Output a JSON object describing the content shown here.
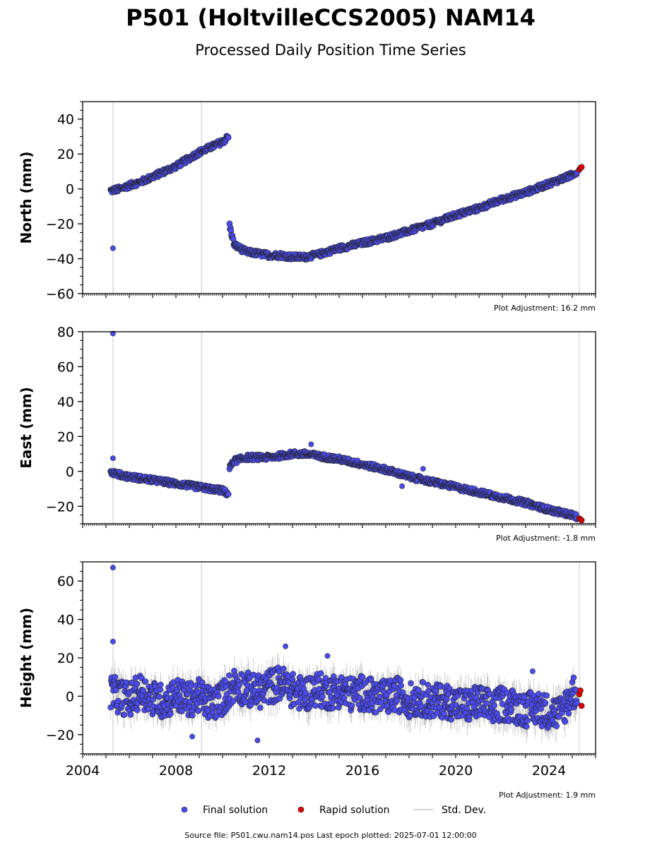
{
  "title": "P501 (HoltvilleCCS2005) NAM14",
  "subtitle": "Processed Daily Position Time Series",
  "footer": "Source file: P501.cwu.nam14.pos  Last epoch plotted: 2025-07-01 12:00:00",
  "legend": {
    "final": "Final solution",
    "rapid": "Rapid solution",
    "std": "Std. Dev."
  },
  "colors": {
    "final": "#4b4bf0",
    "rapid": "#e00000",
    "std": "#bbbbbb",
    "outline": "#222222"
  },
  "chart_data": [
    {
      "type": "scatter",
      "ylabel": "North (mm)",
      "adjustment": "Plot Adjustment: 16.2 mm",
      "xlim": [
        2004,
        2026
      ],
      "ylim": [
        -60,
        50
      ],
      "yticks": [
        -60,
        -40,
        -20,
        0,
        20,
        40
      ],
      "vlines": [
        2005.3,
        2009.1,
        2025.3
      ],
      "series": [
        {
          "role": "final",
          "x": [
            2005.2,
            2005.6,
            2006.0,
            2006.5,
            2007.0,
            2007.5,
            2008.0,
            2008.5,
            2009.0,
            2009.5,
            2010.0,
            2010.25,
            2010.3,
            2010.5,
            2011.0,
            2011.5,
            2012.0,
            2012.5,
            2013.0,
            2013.5,
            2014.0,
            2014.5,
            2015.0,
            2016.0,
            2017.0,
            2018.0,
            2019.0,
            2020.0,
            2021.0,
            2022.0,
            2023.0,
            2024.0,
            2025.0,
            2025.2
          ],
          "y": [
            -1,
            0,
            2,
            4,
            7,
            10,
            13,
            17,
            21,
            24,
            27,
            30,
            -21,
            -32,
            -36,
            -37,
            -38,
            -38,
            -39,
            -39,
            -38,
            -36,
            -34,
            -31,
            -28,
            -24,
            -20,
            -15,
            -11,
            -6,
            -2,
            3,
            8,
            10
          ]
        },
        {
          "role": "final-outlier",
          "x": [
            2005.3
          ],
          "y": [
            -34
          ]
        },
        {
          "role": "rapid",
          "x": [
            2025.3,
            2025.35,
            2025.4
          ],
          "y": [
            11,
            12,
            12.5
          ]
        }
      ]
    },
    {
      "type": "scatter",
      "ylabel": "East (mm)",
      "adjustment": "Plot Adjustment: -1.8 mm",
      "xlim": [
        2004,
        2026
      ],
      "ylim": [
        -30,
        80
      ],
      "yticks": [
        -20,
        0,
        20,
        40,
        60,
        80
      ],
      "vlines": [
        2005.3,
        2009.1,
        2025.3
      ],
      "series": [
        {
          "role": "final",
          "x": [
            2005.2,
            2005.6,
            2006.0,
            2006.5,
            2007.0,
            2007.5,
            2008.0,
            2008.5,
            2009.0,
            2009.5,
            2010.0,
            2010.25,
            2010.3,
            2010.5,
            2011.0,
            2011.5,
            2012.0,
            2012.5,
            2013.0,
            2013.5,
            2014.0,
            2014.5,
            2015.0,
            2016.0,
            2017.0,
            2018.0,
            2019.0,
            2020.0,
            2021.0,
            2022.0,
            2023.0,
            2024.0,
            2025.0,
            2025.2
          ],
          "y": [
            0,
            -2,
            -3,
            -4,
            -5,
            -6,
            -7,
            -8,
            -9,
            -10,
            -11,
            -13,
            2,
            6,
            8,
            8,
            8,
            9,
            10,
            10,
            9,
            8,
            7,
            4,
            1,
            -3,
            -6,
            -9,
            -12,
            -15,
            -18,
            -22,
            -25,
            -26
          ]
        },
        {
          "role": "final-outlier",
          "x": [
            2005.3,
            2005.3,
            2013.8,
            2018.6,
            2017.7
          ],
          "y": [
            79,
            7.5,
            15.5,
            1.5,
            -8.5
          ]
        },
        {
          "role": "rapid",
          "x": [
            2025.3,
            2025.35,
            2025.4
          ],
          "y": [
            -27,
            -27.5,
            -28
          ]
        }
      ]
    },
    {
      "type": "scatter",
      "ylabel": "Height (mm)",
      "adjustment": "Plot Adjustment: 1.9 mm",
      "xlim": [
        2004,
        2026
      ],
      "ylim": [
        -30,
        70
      ],
      "yticks": [
        -20,
        0,
        20,
        40,
        60
      ],
      "xticks": [
        2004,
        2008,
        2012,
        2016,
        2020,
        2024
      ],
      "vlines": [
        2005.3,
        2009.1,
        2025.3
      ],
      "series": [
        {
          "role": "final",
          "x": [
            2005.2,
            2005.6,
            2006.0,
            2006.5,
            2007.0,
            2007.5,
            2008.0,
            2008.5,
            2009.0,
            2009.5,
            2010.0,
            2010.5,
            2011.0,
            2011.5,
            2012.0,
            2012.5,
            2013.0,
            2013.5,
            2014.0,
            2014.5,
            2015.0,
            2015.5,
            2016.0,
            2016.5,
            2017.0,
            2017.5,
            2018.0,
            2018.5,
            2019.0,
            2019.5,
            2020.0,
            2020.5,
            2021.0,
            2021.5,
            2022.0,
            2022.5,
            2023.0,
            2023.5,
            2024.0,
            2024.5,
            2025.0,
            2025.2
          ],
          "y": [
            2,
            0,
            -2,
            3,
            -1,
            -3,
            1,
            -2,
            0,
            -4,
            -1,
            6,
            4,
            2,
            5,
            7,
            3,
            1,
            4,
            2,
            3,
            1,
            2,
            0,
            -1,
            1,
            -2,
            -1,
            -3,
            -2,
            -4,
            -5,
            -3,
            -6,
            -4,
            -5,
            -7,
            -6,
            -8,
            -9,
            2,
            3
          ]
        },
        {
          "role": "final-outlier",
          "x": [
            2005.3,
            2005.3,
            2011.5,
            2012.7,
            2008.7,
            2014.5,
            2023.3
          ],
          "y": [
            67,
            28.5,
            -23,
            26,
            -21,
            21,
            13
          ]
        },
        {
          "role": "rapid",
          "x": [
            2025.3,
            2025.35,
            2025.4
          ],
          "y": [
            1,
            3,
            -5
          ]
        }
      ]
    }
  ]
}
